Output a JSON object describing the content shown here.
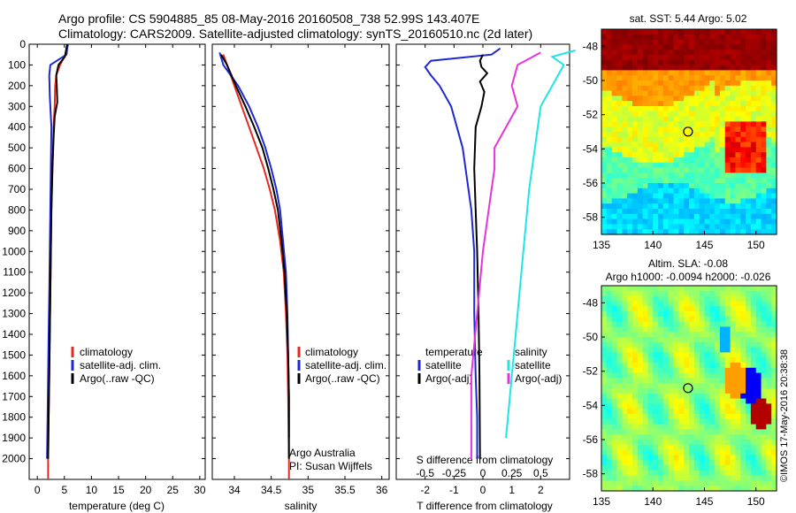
{
  "header": {
    "line1": "Argo profile: CS 5904885_85 08-May-2016 20160508_738 52.99S 143.407E",
    "line2": "Climatology: CARS2009. Satellite-adjusted climatology: synTS_20160510.nc (2d later)"
  },
  "side_stamp": "©IMOS 17-May-2016 20:38:38",
  "colors": {
    "climatology": "#e8281e",
    "satellite": "#1e28d2",
    "argo": "#000000",
    "sat_salinity": "#1ee6e6",
    "argo_salinity": "#e632dc"
  },
  "legend_left": [
    "climatology",
    "satellite-adj. clim.",
    "Argo(..raw -QC)"
  ],
  "legend_diff": {
    "temperature": "temperature",
    "salinity": "salinity",
    "satellite": "satellite",
    "argo": "Argo(-adj)"
  },
  "credit": {
    "line1": "Argo Australia",
    "line2": "PI: Susan Wijffels"
  },
  "chart_data": [
    {
      "type": "line",
      "xlabel": "temperature (deg C)",
      "ylabel": "",
      "xlim": [
        -1.5,
        31
      ],
      "ylim": [
        2100,
        0
      ],
      "xticks": [
        0,
        5,
        10,
        15,
        20,
        25,
        30
      ],
      "yticks": [
        0,
        100,
        200,
        300,
        400,
        500,
        600,
        700,
        800,
        900,
        1000,
        1100,
        1200,
        1300,
        1400,
        1500,
        1600,
        1700,
        1800,
        1900,
        2000
      ],
      "series": [
        {
          "name": "climatology",
          "color": "#e8281e",
          "points": [
            [
              5.7,
              0
            ],
            [
              5.2,
              50
            ],
            [
              4.2,
              100
            ],
            [
              3.5,
              150
            ],
            [
              3.3,
              200
            ],
            [
              3.2,
              300
            ],
            [
              3.0,
              400
            ],
            [
              2.8,
              600
            ],
            [
              2.6,
              800
            ],
            [
              2.5,
              1000
            ],
            [
              2.4,
              1200
            ],
            [
              2.3,
              1400
            ],
            [
              2.2,
              1600
            ],
            [
              2.1,
              1800
            ],
            [
              2.0,
              2000
            ],
            [
              2.0,
              2100
            ]
          ]
        },
        {
          "name": "satellite-adj. clim.",
          "color": "#1e28d2",
          "points": [
            [
              5.6,
              0
            ],
            [
              5.4,
              50
            ],
            [
              2.4,
              100
            ],
            [
              2.2,
              150
            ],
            [
              2.3,
              250
            ],
            [
              2.6,
              400
            ],
            [
              2.5,
              600
            ],
            [
              2.4,
              800
            ],
            [
              2.3,
              1000
            ],
            [
              2.2,
              1200
            ],
            [
              2.1,
              1400
            ],
            [
              2.0,
              1600
            ],
            [
              1.9,
              1800
            ],
            [
              1.8,
              2000
            ]
          ]
        },
        {
          "name": "Argo(..raw -QC)",
          "color": "#000000",
          "points": [
            [
              5.5,
              0
            ],
            [
              5.1,
              60
            ],
            [
              3.9,
              100
            ],
            [
              3.5,
              150
            ],
            [
              3.6,
              200
            ],
            [
              3.7,
              280
            ],
            [
              3.2,
              350
            ],
            [
              3.0,
              450
            ],
            [
              2.8,
              600
            ],
            [
              2.6,
              800
            ],
            [
              2.5,
              1000
            ],
            [
              2.4,
              1200
            ],
            [
              2.3,
              1400
            ],
            [
              2.2,
              1600
            ],
            [
              2.1,
              1800
            ],
            [
              2.0,
              2000
            ]
          ]
        }
      ]
    },
    {
      "type": "line",
      "xlabel": "salinity",
      "ylabel": "",
      "xlim": [
        33.7,
        36.1
      ],
      "ylim": [
        2100,
        0
      ],
      "xticks": [
        34,
        34.5,
        35,
        35.5,
        36
      ],
      "series": [
        {
          "name": "climatology",
          "color": "#e8281e",
          "points": [
            [
              33.85,
              50
            ],
            [
              33.9,
              100
            ],
            [
              34.0,
              200
            ],
            [
              34.1,
              300
            ],
            [
              34.2,
              400
            ],
            [
              34.3,
              500
            ],
            [
              34.4,
              600
            ],
            [
              34.48,
              700
            ],
            [
              34.55,
              800
            ],
            [
              34.62,
              950
            ],
            [
              34.67,
              1100
            ],
            [
              34.7,
              1300
            ],
            [
              34.72,
              1500
            ],
            [
              34.73,
              1700
            ],
            [
              34.74,
              2000
            ],
            [
              34.74,
              2100
            ]
          ]
        },
        {
          "name": "satellite-adj. clim.",
          "color": "#1e28d2",
          "points": [
            [
              33.8,
              40
            ],
            [
              33.85,
              100
            ],
            [
              34.05,
              200
            ],
            [
              34.2,
              300
            ],
            [
              34.32,
              400
            ],
            [
              34.42,
              500
            ],
            [
              34.5,
              600
            ],
            [
              34.57,
              700
            ],
            [
              34.62,
              800
            ],
            [
              34.66,
              950
            ],
            [
              34.7,
              1100
            ],
            [
              34.72,
              1300
            ],
            [
              34.73,
              1500
            ],
            [
              34.74,
              1700
            ],
            [
              34.74,
              1900
            ]
          ]
        },
        {
          "name": "Argo(..raw -QC)",
          "color": "#000000",
          "points": [
            [
              33.82,
              50
            ],
            [
              33.9,
              100
            ],
            [
              34.02,
              200
            ],
            [
              34.15,
              300
            ],
            [
              34.27,
              400
            ],
            [
              34.38,
              500
            ],
            [
              34.46,
              600
            ],
            [
              34.53,
              700
            ],
            [
              34.59,
              800
            ],
            [
              34.64,
              950
            ],
            [
              34.68,
              1100
            ],
            [
              34.71,
              1300
            ],
            [
              34.73,
              1500
            ],
            [
              34.74,
              1700
            ],
            [
              34.74,
              2000
            ]
          ]
        }
      ]
    },
    {
      "type": "line",
      "xlabel": "T difference from climatology",
      "top_label": "S difference from climatology",
      "xlim": [
        -3,
        3
      ],
      "ylim": [
        2100,
        0
      ],
      "xticks": [
        -2,
        -1,
        0,
        1,
        2
      ],
      "top_ticks": [
        -0.5,
        -0.25,
        0,
        0.25,
        0.5
      ],
      "series": [
        {
          "name": "satellite",
          "group": "temperature",
          "color": "#1e28d2",
          "points": [
            [
              0.6,
              20
            ],
            [
              0.3,
              50
            ],
            [
              -1.8,
              80
            ],
            [
              -2.0,
              110
            ],
            [
              -1.8,
              150
            ],
            [
              -1.5,
              200
            ],
            [
              -1.1,
              300
            ],
            [
              -0.9,
              400
            ],
            [
              -0.7,
              500
            ],
            [
              -0.6,
              600
            ],
            [
              -0.4,
              800
            ],
            [
              -0.3,
              1000
            ],
            [
              -0.3,
              1300
            ],
            [
              -0.25,
              1600
            ],
            [
              -0.2,
              1800
            ],
            [
              -0.2,
              2000
            ]
          ]
        },
        {
          "name": "Argo(-adj)",
          "group": "temperature",
          "color": "#000000",
          "points": [
            [
              0.0,
              50
            ],
            [
              -0.1,
              80
            ],
            [
              -0.05,
              110
            ],
            [
              0.15,
              140
            ],
            [
              -0.1,
              180
            ],
            [
              0.05,
              230
            ],
            [
              -0.05,
              300
            ],
            [
              -0.25,
              400
            ],
            [
              -0.3,
              600
            ],
            [
              -0.25,
              800
            ],
            [
              -0.2,
              1000
            ],
            [
              -0.15,
              1300
            ],
            [
              -0.12,
              1600
            ],
            [
              -0.1,
              2000
            ]
          ]
        },
        {
          "name": "satellite",
          "group": "salinity",
          "color": "#1ee6e6",
          "points": [
            [
              0.8,
              30
            ],
            [
              0.6,
              60
            ],
            [
              0.7,
              100
            ],
            [
              0.6,
              200
            ],
            [
              0.5,
              300
            ],
            [
              0.45,
              500
            ],
            [
              0.4,
              700
            ],
            [
              0.35,
              1000
            ],
            [
              0.3,
              1300
            ],
            [
              0.25,
              1600
            ],
            [
              0.2,
              1900
            ]
          ]
        },
        {
          "name": "Argo(-adj)",
          "group": "salinity",
          "color": "#e632dc",
          "points": [
            [
              0.5,
              40
            ],
            [
              0.3,
              100
            ],
            [
              0.25,
              200
            ],
            [
              0.3,
              300
            ],
            [
              0.2,
              400
            ],
            [
              0.1,
              500
            ],
            [
              0.1,
              600
            ],
            [
              0.05,
              800
            ],
            [
              0.0,
              1000
            ],
            [
              -0.05,
              1300
            ],
            [
              -0.1,
              1600
            ],
            [
              -0.1,
              2000
            ]
          ]
        }
      ]
    },
    {
      "type": "heatmap",
      "title": "sat. SST: 5.44 Argo: 5.02",
      "xlim": [
        135,
        152
      ],
      "ylim": [
        -59,
        -47
      ],
      "xticks": [
        135,
        140,
        145,
        150
      ],
      "yticks": [
        -48,
        -50,
        -52,
        -54,
        -56,
        -58
      ],
      "float_position": [
        143.407,
        -52.99
      ]
    },
    {
      "type": "heatmap",
      "title": "Altim. SLA: -0.08",
      "subtitle": "Argo h1000: -0.0094 h2000: -0.026",
      "xlim": [
        135,
        152
      ],
      "ylim": [
        -59,
        -47
      ],
      "xticks": [
        135,
        140,
        145,
        150
      ],
      "yticks": [
        -48,
        -50,
        -52,
        -54,
        -56,
        -58
      ],
      "float_position": [
        143.407,
        -52.99
      ]
    }
  ]
}
